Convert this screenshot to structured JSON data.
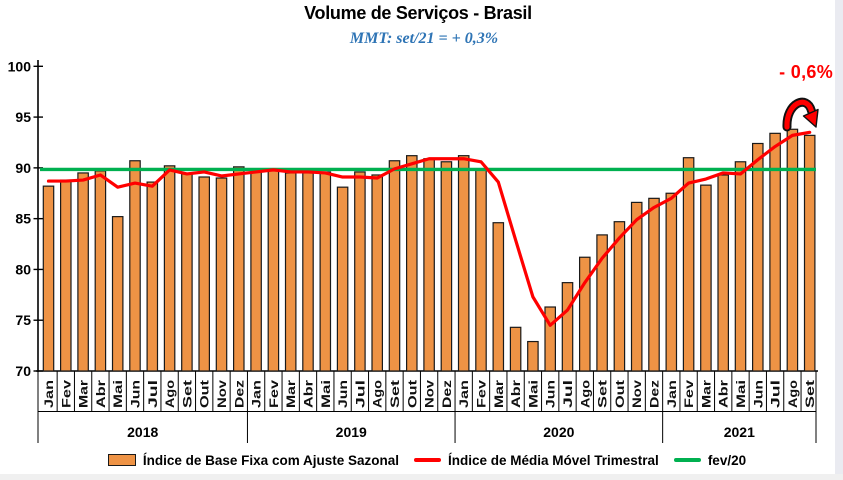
{
  "header": {
    "title": "Volume de Serviços - Brasil",
    "subtitle": "MMT: set/21 = + 0,3%"
  },
  "annotation": {
    "text": "- 0,6%"
  },
  "legend": {
    "items": [
      {
        "label": "Índice de Base Fixa com Ajuste Sazonal",
        "swatch": "bar"
      },
      {
        "label": "Índice de Média Móvel Trimestral",
        "swatch": "red-line"
      },
      {
        "label": "fev/20",
        "swatch": "green-line"
      }
    ]
  },
  "colors": {
    "bar_fill": "#EE9345",
    "bar_border": "#1A1A1A",
    "mmt_line": "#FF0000",
    "reference_line": "#00B050",
    "subtitle_text": "#2E74B5",
    "annotation_text": "#FF0000"
  },
  "chart_data": {
    "type": "bar",
    "title": "Volume de Serviços - Brasil",
    "subtitle": "MMT: set/21 = + 0,3%",
    "ylim": [
      70,
      100
    ],
    "yticks": [
      70,
      75,
      80,
      85,
      90,
      95,
      100
    ],
    "grid": false,
    "legend_position": "bottom",
    "years": [
      {
        "label": "2018",
        "n_months": 12
      },
      {
        "label": "2019",
        "n_months": 12
      },
      {
        "label": "2020",
        "n_months": 12
      },
      {
        "label": "2021",
        "n_months": 9
      }
    ],
    "categories": [
      "Jan",
      "Fev",
      "Mar",
      "Abr",
      "Mai",
      "Jun",
      "Jul",
      "Ago",
      "Set",
      "Out",
      "Nov",
      "Dez",
      "Jan",
      "Fev",
      "Mar",
      "Abr",
      "Mai",
      "Jun",
      "Jul",
      "Ago",
      "Set",
      "Out",
      "Nov",
      "Dez",
      "Jan",
      "Fev",
      "Mar",
      "Abr",
      "Mai",
      "Jun",
      "Jul",
      "Ago",
      "Set",
      "Out",
      "Nov",
      "Dez",
      "Jan",
      "Fev",
      "Mar",
      "Abr",
      "Mai",
      "Jun",
      "Jul",
      "Ago",
      "Set"
    ],
    "series": [
      {
        "name": "Índice de Base Fixa com Ajuste Sazonal",
        "type": "bar",
        "values": [
          88.2,
          88.8,
          89.5,
          89.7,
          85.2,
          90.7,
          88.6,
          90.2,
          89.4,
          89.1,
          89.0,
          90.1,
          89.6,
          89.7,
          89.5,
          89.5,
          89.6,
          88.1,
          89.6,
          89.3,
          90.7,
          91.2,
          90.9,
          90.6,
          91.2,
          89.9,
          84.6,
          74.3,
          72.9,
          76.3,
          78.7,
          81.2,
          83.4,
          84.7,
          86.6,
          87.0,
          87.5,
          91.0,
          88.3,
          89.3,
          90.6,
          92.4,
          93.4,
          93.8,
          93.2
        ]
      },
      {
        "name": "Índice de Média Móvel Trimestral",
        "type": "line",
        "values": [
          88.7,
          88.7,
          88.8,
          89.3,
          88.1,
          88.5,
          88.2,
          89.8,
          89.4,
          89.6,
          89.2,
          89.4,
          89.6,
          89.8,
          89.6,
          89.6,
          89.5,
          89.1,
          89.1,
          89.0,
          89.9,
          90.4,
          90.9,
          90.9,
          90.9,
          90.6,
          88.6,
          82.9,
          77.3,
          74.5,
          76.0,
          78.7,
          81.1,
          83.1,
          84.9,
          86.1,
          87.0,
          88.5,
          88.9,
          89.5,
          89.4,
          90.8,
          92.1,
          93.2,
          93.5
        ]
      },
      {
        "name": "fev/20",
        "type": "reference-line",
        "value": 89.85
      }
    ],
    "annotation": {
      "text": "- 0,6%"
    }
  }
}
